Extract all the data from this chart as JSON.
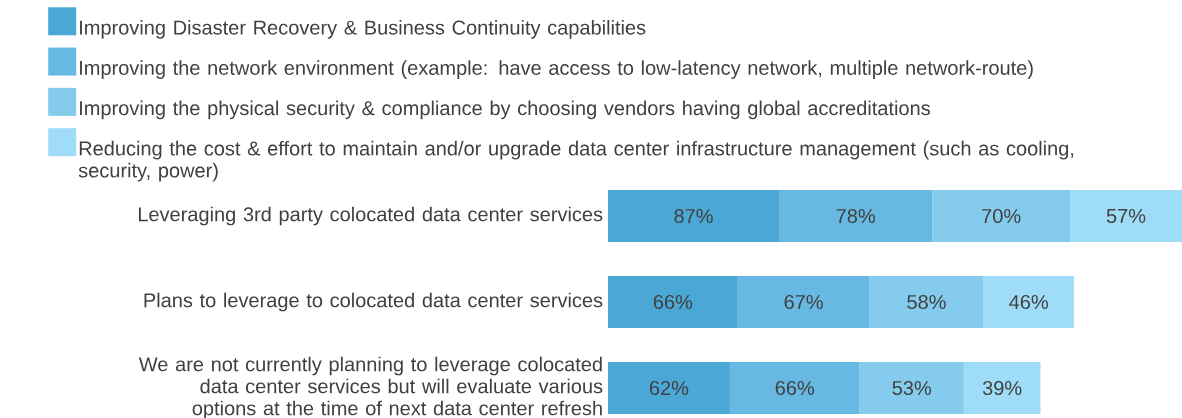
{
  "chart_data": {
    "type": "bar",
    "orientation": "horizontal",
    "stacked": true,
    "legend": "top",
    "tick_labels": "y",
    "xlim": [
      0,
      292
    ],
    "categories": [
      "Leveraging 3rd party colocated data center services",
      "Plans to leverage to colocated data center services",
      "We are not currently planning to leverage colocated data center services but will evaluate various options at the time of next data center refresh"
    ],
    "series": [
      {
        "name": "Improving Disaster Recovery & Business Continuity capabilities",
        "color": "#4ba7d5",
        "values": [
          87,
          66,
          62
        ],
        "value_labels": [
          "87%",
          "66%",
          "62%"
        ]
      },
      {
        "name": "Improving the network environment (example: have access to low-latency network, multiple network-route)",
        "color": "#67b8e2",
        "values": [
          78,
          67,
          66
        ],
        "value_labels": [
          "78%",
          "67%",
          "66%"
        ]
      },
      {
        "name": "Improving the physical security & compliance by choosing vendors having global accreditations",
        "color": "#84cbed",
        "values": [
          70,
          58,
          53
        ],
        "value_labels": [
          "70%",
          "58%",
          "53%"
        ]
      },
      {
        "name": "Reducing the cost & effort to maintain and/or upgrade data center infrastructure management (such as cooling, security, power)",
        "color": "#9fdcf8",
        "values": [
          57,
          46,
          39
        ],
        "value_labels": [
          "57%",
          "46%",
          "39%"
        ]
      }
    ]
  }
}
